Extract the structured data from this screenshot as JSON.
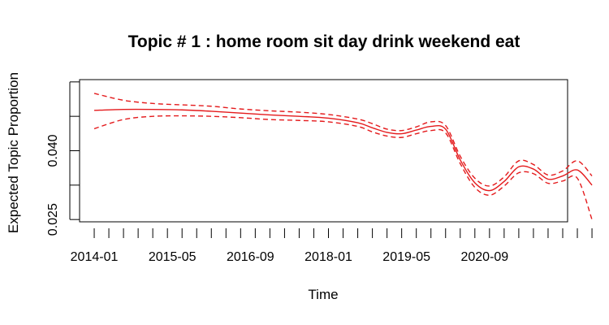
{
  "chart_data": {
    "type": "line",
    "title": "Topic # 1 :  home room sit day drink weekend eat",
    "xlabel": "Time",
    "ylabel": "Expected Topic Proportion",
    "x_tick_labels": [
      "2014-01",
      "2015-05",
      "2016-09",
      "2018-01",
      "2019-05",
      "2020-09"
    ],
    "x_tick_dates": [
      "2014-01",
      "2015-05",
      "2016-09",
      "2018-01",
      "2019-05",
      "2020-09"
    ],
    "x_minor_ticks": "monthly-quarterly",
    "xlim": [
      "2013-10",
      "2022-02"
    ],
    "y_ticks": [
      0.025,
      0.0325,
      0.04,
      0.0475,
      0.055
    ],
    "y_tick_labels": [
      "0.025",
      "",
      "0.040",
      "",
      ""
    ],
    "ylim": [
      0.0245,
      0.0555
    ],
    "grid": false,
    "series": [
      {
        "line_style": "solid",
        "color": "#e41a1c",
        "points": [
          [
            "2014-01",
            0.0488
          ],
          [
            "2014-07",
            0.049
          ],
          [
            "2015-01",
            0.049
          ],
          [
            "2015-07",
            0.0489
          ],
          [
            "2016-01",
            0.0486
          ],
          [
            "2016-07",
            0.0482
          ],
          [
            "2017-01",
            0.0478
          ],
          [
            "2017-07",
            0.0475
          ],
          [
            "2018-01",
            0.0471
          ],
          [
            "2018-07",
            0.0461
          ],
          [
            "2018-10",
            0.045
          ],
          [
            "2019-01",
            0.044
          ],
          [
            "2019-04",
            0.0437
          ],
          [
            "2019-07",
            0.0445
          ],
          [
            "2019-10",
            0.0453
          ],
          [
            "2020-01",
            0.0447
          ],
          [
            "2020-04",
            0.038
          ],
          [
            "2020-07",
            0.033
          ],
          [
            "2020-10",
            0.0313
          ],
          [
            "2021-01",
            0.0333
          ],
          [
            "2021-04",
            0.0365
          ],
          [
            "2021-07",
            0.036
          ],
          [
            "2021-10",
            0.0338
          ],
          [
            "2022-01",
            0.0345
          ],
          [
            "2022-04",
            0.0358
          ],
          [
            "2022-07",
            0.0325
          ]
        ]
      },
      {
        "line_style": "dashed",
        "color": "#e41a1c",
        "points": [
          [
            "2014-01",
            0.0525
          ],
          [
            "2014-07",
            0.051
          ],
          [
            "2015-01",
            0.0503
          ],
          [
            "2015-07",
            0.05
          ],
          [
            "2016-01",
            0.0497
          ],
          [
            "2016-07",
            0.0491
          ],
          [
            "2017-01",
            0.0487
          ],
          [
            "2017-07",
            0.0484
          ],
          [
            "2018-01",
            0.0479
          ],
          [
            "2018-07",
            0.0469
          ],
          [
            "2018-10",
            0.0459
          ],
          [
            "2019-01",
            0.0447
          ],
          [
            "2019-04",
            0.0444
          ],
          [
            "2019-07",
            0.0452
          ],
          [
            "2019-10",
            0.0463
          ],
          [
            "2020-01",
            0.0455
          ],
          [
            "2020-04",
            0.0388
          ],
          [
            "2020-07",
            0.034
          ],
          [
            "2020-10",
            0.0323
          ],
          [
            "2021-01",
            0.0343
          ],
          [
            "2021-04",
            0.0378
          ],
          [
            "2021-07",
            0.037
          ],
          [
            "2021-10",
            0.0347
          ],
          [
            "2022-01",
            0.0356
          ],
          [
            "2022-04",
            0.0378
          ],
          [
            "2022-07",
            0.0345
          ]
        ]
      },
      {
        "line_style": "dashed",
        "color": "#e41a1c",
        "points": [
          [
            "2014-01",
            0.0448
          ],
          [
            "2014-07",
            0.0468
          ],
          [
            "2015-01",
            0.0475
          ],
          [
            "2015-07",
            0.0476
          ],
          [
            "2016-01",
            0.0475
          ],
          [
            "2016-07",
            0.0472
          ],
          [
            "2017-01",
            0.0468
          ],
          [
            "2017-07",
            0.0466
          ],
          [
            "2018-01",
            0.0463
          ],
          [
            "2018-07",
            0.0453
          ],
          [
            "2018-10",
            0.0441
          ],
          [
            "2019-01",
            0.0432
          ],
          [
            "2019-04",
            0.0429
          ],
          [
            "2019-07",
            0.0437
          ],
          [
            "2019-10",
            0.0444
          ],
          [
            "2020-01",
            0.0439
          ],
          [
            "2020-04",
            0.0372
          ],
          [
            "2020-07",
            0.032
          ],
          [
            "2020-10",
            0.0303
          ],
          [
            "2021-01",
            0.0323
          ],
          [
            "2021-04",
            0.0352
          ],
          [
            "2021-07",
            0.035
          ],
          [
            "2021-10",
            0.0329
          ],
          [
            "2022-01",
            0.0334
          ],
          [
            "2022-04",
            0.034
          ],
          [
            "2022-07",
            0.025
          ]
        ]
      }
    ]
  }
}
